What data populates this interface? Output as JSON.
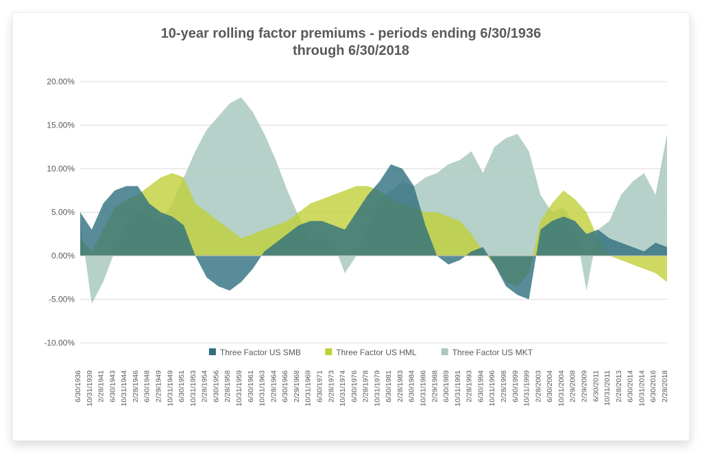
{
  "chart": {
    "type": "area",
    "title": "10-year rolling factor premiums - periods ending 6/30/1936\nthrough 6/30/2018",
    "title_fontsize": 20,
    "title_color": "#595959",
    "background_color": "#ffffff",
    "plot_background_color": "#ffffff",
    "grid_color": "#d9d9d9",
    "axis_label_color": "#595959",
    "y": {
      "min": -10,
      "max": 20,
      "tick_step": 5,
      "tick_format_suffix": "%",
      "tick_decimals": 2,
      "tick_fontsize": 12
    },
    "x": {
      "labels": [
        "6/30/1936",
        "10/31/1939",
        "2/28/1941",
        "6/30/1943",
        "10/31/1944",
        "2/28/1946",
        "6/30/1948",
        "2/29/1949",
        "10/31/1949",
        "6/30/1951",
        "10/31/1953",
        "2/28/1954",
        "6/30/1956",
        "2/28/1958",
        "10/31/1959",
        "6/30/1961",
        "10/31/1963",
        "2/28/1964",
        "6/30/1966",
        "2/29/1968",
        "10/31/1969",
        "6/30/1971",
        "2/28/1973",
        "10/31/1974",
        "6/30/1976",
        "2/28/1978",
        "10/31/1979",
        "6/30/1981",
        "2/28/1983",
        "6/30/1984",
        "10/31/1986",
        "2/29/1988",
        "6/30/1989",
        "10/31/1991",
        "2/28/1993",
        "6/30/1994",
        "10/31/1996",
        "2/28/1998",
        "6/30/1999",
        "10/31/1999",
        "2/28/2003",
        "6/30/2004",
        "10/31/2004",
        "2/29/2008",
        "2/29/2009",
        "6/30/2011",
        "10/31/2011",
        "2/28/2013",
        "6/30/2014",
        "10/31/2014",
        "6/30/2016",
        "2/28/2018"
      ],
      "tick_fontsize": 10.5,
      "label_rotation_deg": -90
    },
    "legend": {
      "position": "bottom",
      "marker_shape": "square",
      "marker_size": 10,
      "fontsize": 12,
      "items": [
        {
          "label": "Three Factor US SMB",
          "color": "#2f6f7f"
        },
        {
          "label": "Three Factor US HML",
          "color": "#c0cf3a"
        },
        {
          "label": "Three Factor US MKT",
          "color": "#a9c9bf"
        }
      ]
    },
    "series": [
      {
        "name": "Three Factor US MKT",
        "color": "#a9c9bf",
        "opacity": 0.85,
        "values": [
          4.0,
          -5.5,
          -3.0,
          0.5,
          3.5,
          5.0,
          4.5,
          4.0,
          6.0,
          9.0,
          12.0,
          14.5,
          16.0,
          17.5,
          18.2,
          16.5,
          14.0,
          11.0,
          7.5,
          4.5,
          2.0,
          2.0,
          1.5,
          -2.0,
          0.0,
          3.5,
          6.5,
          7.5,
          8.5,
          8.0,
          9.0,
          9.5,
          10.5,
          11.0,
          12.0,
          9.5,
          12.5,
          13.5,
          14.0,
          12.0,
          7.0,
          5.0,
          5.5,
          3.5,
          -4.0,
          3.0,
          4.0,
          7.0,
          8.5,
          9.5,
          7.0,
          14.0
        ]
      },
      {
        "name": "Three Factor US HML",
        "color": "#c0cf3a",
        "opacity": 0.8,
        "values": [
          2.0,
          0.5,
          3.0,
          5.5,
          6.5,
          7.0,
          8.0,
          9.0,
          9.5,
          9.0,
          6.0,
          5.0,
          4.0,
          3.0,
          2.0,
          2.5,
          3.0,
          3.5,
          4.0,
          5.0,
          6.0,
          6.5,
          7.0,
          7.5,
          8.0,
          8.0,
          7.5,
          6.5,
          6.0,
          5.5,
          5.0,
          5.0,
          4.5,
          4.0,
          2.5,
          0.5,
          -1.0,
          -3.0,
          -3.5,
          -2.0,
          4.0,
          6.0,
          7.5,
          6.5,
          5.0,
          2.0,
          0.0,
          -0.5,
          -1.0,
          -1.5,
          -2.0,
          -3.0
        ]
      },
      {
        "name": "Three Factor US SMB",
        "color": "#2f6f7f",
        "opacity": 0.8,
        "values": [
          5.0,
          3.0,
          6.0,
          7.5,
          8.0,
          8.0,
          6.0,
          5.0,
          4.5,
          3.5,
          0.0,
          -2.5,
          -3.5,
          -4.0,
          -3.0,
          -1.5,
          0.5,
          1.5,
          2.5,
          3.5,
          4.0,
          4.0,
          3.5,
          3.0,
          5.0,
          7.0,
          8.5,
          10.5,
          10.0,
          8.0,
          3.5,
          0.0,
          -1.0,
          -0.5,
          0.5,
          1.0,
          -1.0,
          -3.5,
          -4.5,
          -5.0,
          3.0,
          4.0,
          4.5,
          4.0,
          2.5,
          3.0,
          2.0,
          1.5,
          1.0,
          0.5,
          1.5,
          1.0
        ]
      }
    ]
  }
}
